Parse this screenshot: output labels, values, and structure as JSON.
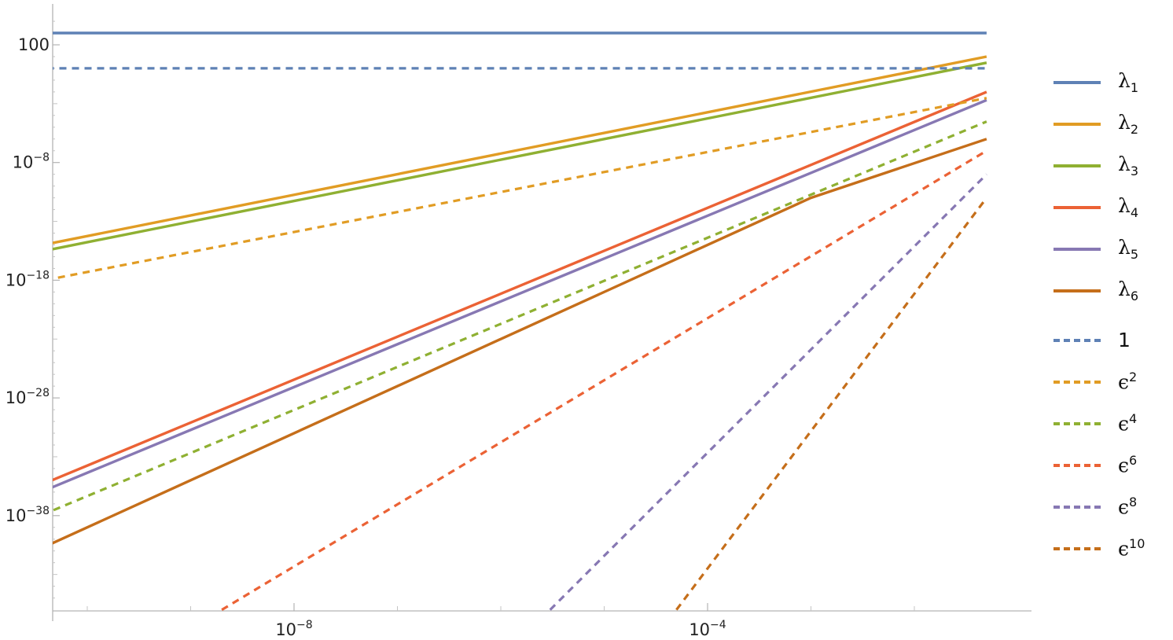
{
  "chart_data": {
    "type": "line",
    "x_scale": "log",
    "y_scale": "log",
    "xlim": [
      1e-11,
      0.08
    ],
    "ylim": [
      1e-46,
      100000.0
    ],
    "x_ticks": [
      {
        "value": 1e-08,
        "label": "10",
        "sup": "−8"
      },
      {
        "value": 0.0001,
        "label": "10",
        "sup": "−4"
      }
    ],
    "y_ticks": [
      {
        "value": 100,
        "label": "100",
        "sup": ""
      },
      {
        "value": 1e-08,
        "label": "10",
        "sup": "−8"
      },
      {
        "value": 1e-18,
        "label": "10",
        "sup": "−18"
      },
      {
        "value": 1e-28,
        "label": "10",
        "sup": "−28"
      },
      {
        "value": 1e-38,
        "label": "10",
        "sup": "−38"
      }
    ],
    "x_minor_ticks": [
      1e-10,
      1e-09,
      1e-07,
      1e-06,
      1e-05,
      0.001,
      0.01
    ],
    "legend_placement": "right",
    "series": [
      {
        "name": "λ1",
        "base": "λ",
        "sub": "1",
        "color": "#5E81B5",
        "dash": false,
        "x": [
          1e-11,
          0.05
        ],
        "y": [
          1000,
          1000
        ]
      },
      {
        "name": "λ2",
        "base": "λ",
        "sub": "2",
        "color": "#E19C24",
        "dash": false,
        "x": [
          1e-11,
          0.05
        ],
        "y": [
          1e-16,
          10
        ]
      },
      {
        "name": "λ3",
        "base": "λ",
        "sub": "3",
        "color": "#8FB032",
        "dash": false,
        "x": [
          1e-11,
          0.05
        ],
        "y": [
          3e-17,
          3
        ]
      },
      {
        "name": "λ4",
        "base": "λ",
        "sub": "4",
        "color": "#EB6235",
        "dash": false,
        "x": [
          1e-11,
          0.05
        ],
        "y": [
          4e-38,
          0.01
        ]
      },
      {
        "name": "λ5",
        "base": "λ",
        "sub": "5",
        "color": "#8778B3",
        "dash": false,
        "x": [
          1e-11,
          0.05
        ],
        "y": [
          1e-38,
          0.002
        ]
      },
      {
        "name": "λ6",
        "base": "λ",
        "sub": "6",
        "color": "#C56E1A",
        "dash": false,
        "x": [
          1e-11,
          0.001,
          0.05
        ],
        "y": [
          1e-43,
          1e-11,
          1e-06
        ]
      },
      {
        "name": "1",
        "base": "1",
        "sub": "",
        "sup": "",
        "color": "#5E81B5",
        "dash": true,
        "x": [
          1e-11,
          0.05
        ],
        "y": [
          1,
          1
        ]
      },
      {
        "name": "ε2",
        "base": "ϵ",
        "sup": "2",
        "color": "#E19C24",
        "dash": true,
        "x": [
          1e-11,
          0.05
        ],
        "y": [
          1e-19,
          0.003
        ]
      },
      {
        "name": "ε4",
        "base": "ϵ",
        "sup": "4",
        "color": "#8FB032",
        "dash": true,
        "x": [
          1e-11,
          0.05
        ],
        "y": [
          1e-40,
          3e-05
        ]
      },
      {
        "name": "ε6",
        "base": "ϵ",
        "sup": "6",
        "color": "#EB6235",
        "dash": true,
        "x": [
          2e-09,
          0.05
        ],
        "y": [
          1e-46,
          1e-07
        ]
      },
      {
        "name": "ε8",
        "base": "ϵ",
        "sup": "8",
        "color": "#8778B3",
        "dash": true,
        "x": [
          3e-06,
          0.05
        ],
        "y": [
          1e-46,
          1e-09
        ]
      },
      {
        "name": "ε10",
        "base": "ϵ",
        "sup": "10",
        "color": "#C56E1A",
        "dash": true,
        "x": [
          5e-05,
          0.05
        ],
        "y": [
          1e-46,
          1e-11
        ]
      }
    ]
  }
}
